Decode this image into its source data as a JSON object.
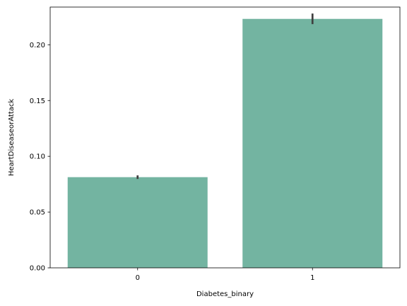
{
  "chart_data": {
    "type": "bar",
    "title": "",
    "xlabel": "Diabetes_binary",
    "ylabel": "HeartDiseaseorAttack",
    "categories": [
      "0",
      "1"
    ],
    "values": [
      0.0813,
      0.2232
    ],
    "error_low": [
      0.0797,
      0.2185
    ],
    "error_high": [
      0.0829,
      0.228
    ],
    "ylim": [
      0,
      0.2338
    ],
    "yticks": [
      0.0,
      0.05,
      0.1,
      0.15,
      0.2
    ],
    "ytick_labels": [
      "0.00",
      "0.05",
      "0.10",
      "0.15",
      "0.20"
    ],
    "grid": false,
    "colors": {
      "bar": "#73b4a1",
      "errorbar": "#3f3f3f",
      "axis": "#000000"
    }
  }
}
